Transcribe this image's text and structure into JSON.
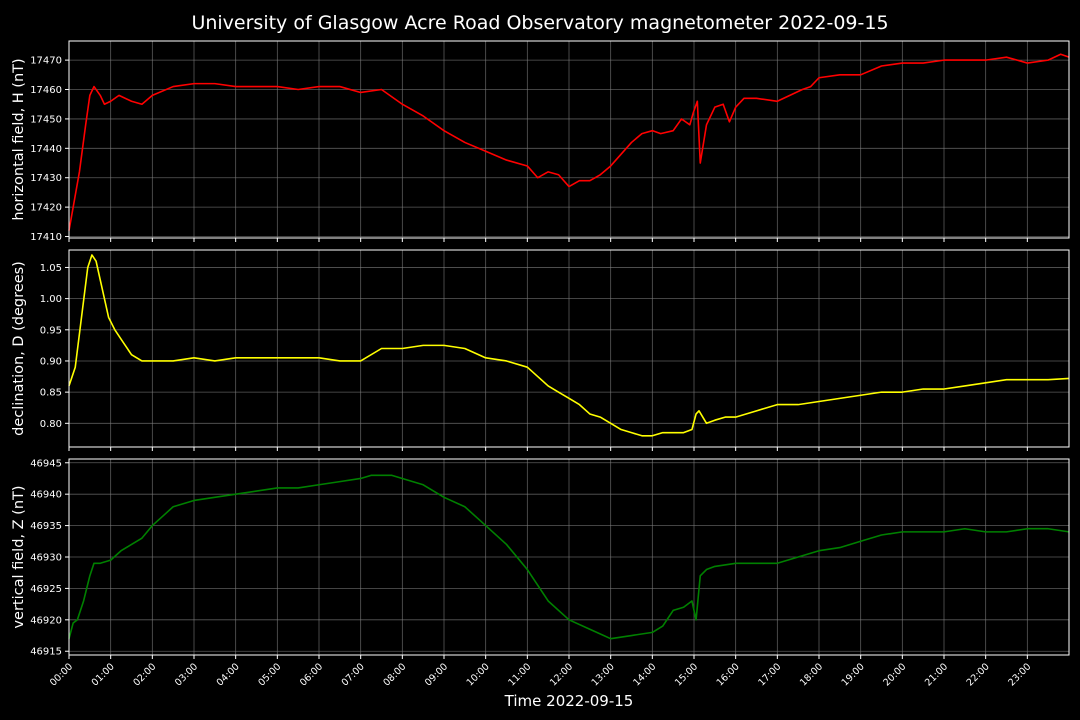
{
  "figure": {
    "title": "University of Glasgow Acre Road Observatory magnetometer 2022-09-15",
    "background": "#000000",
    "grid_color": "#808080",
    "axis_color": "#ffffff"
  },
  "chart_data": [
    {
      "type": "line",
      "ylabel": "horizontal field, H (nT)",
      "xlabel": "",
      "ylim": [
        17409.5,
        17476.5
      ],
      "yticks": [
        17410,
        17420,
        17430,
        17440,
        17450,
        17460,
        17470
      ],
      "grid": true,
      "series": [
        {
          "color": "#ff0000",
          "x": [
            0,
            0.1,
            0.25,
            0.4,
            0.5,
            0.6,
            0.75,
            0.85,
            1.0,
            1.2,
            1.5,
            1.75,
            2.0,
            2.5,
            3.0,
            3.5,
            4.0,
            4.5,
            5.0,
            5.5,
            6.0,
            6.5,
            7.0,
            7.5,
            8.0,
            8.5,
            9.0,
            9.5,
            10.0,
            10.5,
            11.0,
            11.25,
            11.5,
            11.75,
            12.0,
            12.25,
            12.5,
            12.75,
            13.0,
            13.25,
            13.5,
            13.75,
            14.0,
            14.2,
            14.5,
            14.7,
            14.8,
            14.9,
            14.98,
            15.08,
            15.15,
            15.3,
            15.5,
            15.7,
            15.85,
            16.0,
            16.2,
            16.5,
            17.0,
            17.3,
            17.6,
            17.8,
            18.0,
            18.5,
            19.0,
            19.5,
            20.0,
            20.5,
            21.0,
            21.5,
            22.0,
            22.5,
            23.0,
            23.5,
            23.8,
            24.0
          ],
          "y": [
            17412,
            17420,
            17432,
            17448,
            17458,
            17461,
            17458,
            17455,
            17456,
            17458,
            17456,
            17455,
            17458,
            17461,
            17462,
            17462,
            17461,
            17461,
            17461,
            17460,
            17461,
            17461,
            17459,
            17460,
            17455,
            17451,
            17446,
            17442,
            17439,
            17436,
            17434,
            17430,
            17432,
            17431,
            17427,
            17429,
            17429,
            17431,
            17434,
            17438,
            17442,
            17445,
            17446,
            17445,
            17446,
            17450,
            17449,
            17448,
            17452,
            17456,
            17435,
            17448,
            17454,
            17455,
            17449,
            17454,
            17457,
            17457,
            17456,
            17458,
            17460,
            17461,
            17464,
            17465,
            17465,
            17468,
            17469,
            17469,
            17470,
            17470,
            17470,
            17471,
            17469,
            17470,
            17472,
            17471
          ]
        }
      ]
    },
    {
      "type": "line",
      "ylabel": "declination, D (degrees)",
      "xlabel": "",
      "ylim": [
        0.762,
        1.078
      ],
      "yticks": [
        0.8,
        0.85,
        0.9,
        0.95,
        1.0,
        1.05
      ],
      "grid": true,
      "series": [
        {
          "color": "#ffff00",
          "x": [
            0,
            0.15,
            0.3,
            0.45,
            0.55,
            0.65,
            0.75,
            0.85,
            0.95,
            1.1,
            1.3,
            1.5,
            1.75,
            2.0,
            2.5,
            3.0,
            3.5,
            4.0,
            4.5,
            5.0,
            5.5,
            6.0,
            6.5,
            7.0,
            7.5,
            8.0,
            8.5,
            9.0,
            9.5,
            10.0,
            10.5,
            11.0,
            11.25,
            11.5,
            11.75,
            12.0,
            12.25,
            12.5,
            12.75,
            13.0,
            13.25,
            13.5,
            13.75,
            14.0,
            14.25,
            14.5,
            14.75,
            14.95,
            15.05,
            15.12,
            15.3,
            15.5,
            15.75,
            16.0,
            16.25,
            16.5,
            17.0,
            17.5,
            18.0,
            18.5,
            19.0,
            19.5,
            20.0,
            20.5,
            21.0,
            21.5,
            22.0,
            22.5,
            23.0,
            23.5,
            24.0
          ],
          "y": [
            0.86,
            0.89,
            0.97,
            1.05,
            1.07,
            1.06,
            1.03,
            1.0,
            0.97,
            0.95,
            0.93,
            0.91,
            0.9,
            0.9,
            0.9,
            0.905,
            0.9,
            0.905,
            0.905,
            0.905,
            0.905,
            0.905,
            0.9,
            0.9,
            0.92,
            0.92,
            0.925,
            0.925,
            0.92,
            0.905,
            0.9,
            0.89,
            0.875,
            0.86,
            0.85,
            0.84,
            0.83,
            0.815,
            0.81,
            0.8,
            0.79,
            0.785,
            0.78,
            0.78,
            0.785,
            0.785,
            0.785,
            0.79,
            0.815,
            0.82,
            0.8,
            0.805,
            0.81,
            0.81,
            0.815,
            0.82,
            0.83,
            0.83,
            0.835,
            0.84,
            0.845,
            0.85,
            0.85,
            0.855,
            0.855,
            0.86,
            0.865,
            0.87,
            0.87,
            0.87,
            0.872
          ]
        }
      ]
    },
    {
      "type": "line",
      "ylabel": "vertical field, Z (nT)",
      "xlabel": "Time 2022-09-15",
      "ylim": [
        46914.4,
        46945.6
      ],
      "yticks": [
        46915,
        46920,
        46925,
        46930,
        46935,
        46940,
        46945
      ],
      "grid": true,
      "series": [
        {
          "color": "#008000",
          "x": [
            0,
            0.1,
            0.2,
            0.35,
            0.5,
            0.6,
            0.75,
            1.0,
            1.25,
            1.5,
            1.75,
            2.0,
            2.25,
            2.5,
            3.0,
            3.5,
            4.0,
            4.5,
            5.0,
            5.5,
            6.0,
            6.5,
            7.0,
            7.25,
            7.5,
            7.75,
            8.0,
            8.5,
            9.0,
            9.5,
            10.0,
            10.5,
            11.0,
            11.5,
            12.0,
            12.5,
            13.0,
            13.5,
            14.0,
            14.25,
            14.5,
            14.75,
            14.95,
            15.05,
            15.15,
            15.3,
            15.5,
            16.0,
            16.5,
            17.0,
            17.5,
            18.0,
            18.5,
            19.0,
            19.5,
            20.0,
            20.5,
            21.0,
            21.5,
            22.0,
            22.5,
            23.0,
            23.5,
            24.0
          ],
          "y": [
            46917,
            46919.5,
            46920,
            46923,
            46927,
            46929,
            46929,
            46929.5,
            46931,
            46932,
            46933,
            46935,
            46936.5,
            46938,
            46939,
            46939.5,
            46940,
            46940.5,
            46941,
            46941,
            46941.5,
            46942,
            46942.5,
            46943,
            46943,
            46943,
            46942.5,
            46941.5,
            46939.5,
            46938,
            46935,
            46932,
            46928,
            46923,
            46920,
            46918.5,
            46917,
            46917.5,
            46918,
            46919,
            46921.5,
            46922,
            46923,
            46920,
            46927,
            46928,
            46928.5,
            46929,
            46929,
            46929,
            46930,
            46931,
            46931.5,
            46932.5,
            46933.5,
            46934,
            46934,
            46934,
            46934.5,
            46934,
            46934,
            46934.5,
            46934.5,
            46934
          ]
        }
      ]
    }
  ],
  "x_axis": {
    "range_hours": [
      0,
      24
    ],
    "tick_labels": [
      "00:00",
      "01:00",
      "02:00",
      "03:00",
      "04:00",
      "05:00",
      "06:00",
      "07:00",
      "08:00",
      "09:00",
      "10:00",
      "11:00",
      "12:00",
      "13:00",
      "14:00",
      "15:00",
      "16:00",
      "17:00",
      "18:00",
      "19:00",
      "20:00",
      "21:00",
      "22:00",
      "23:00"
    ],
    "label": "Time 2022-09-15"
  }
}
